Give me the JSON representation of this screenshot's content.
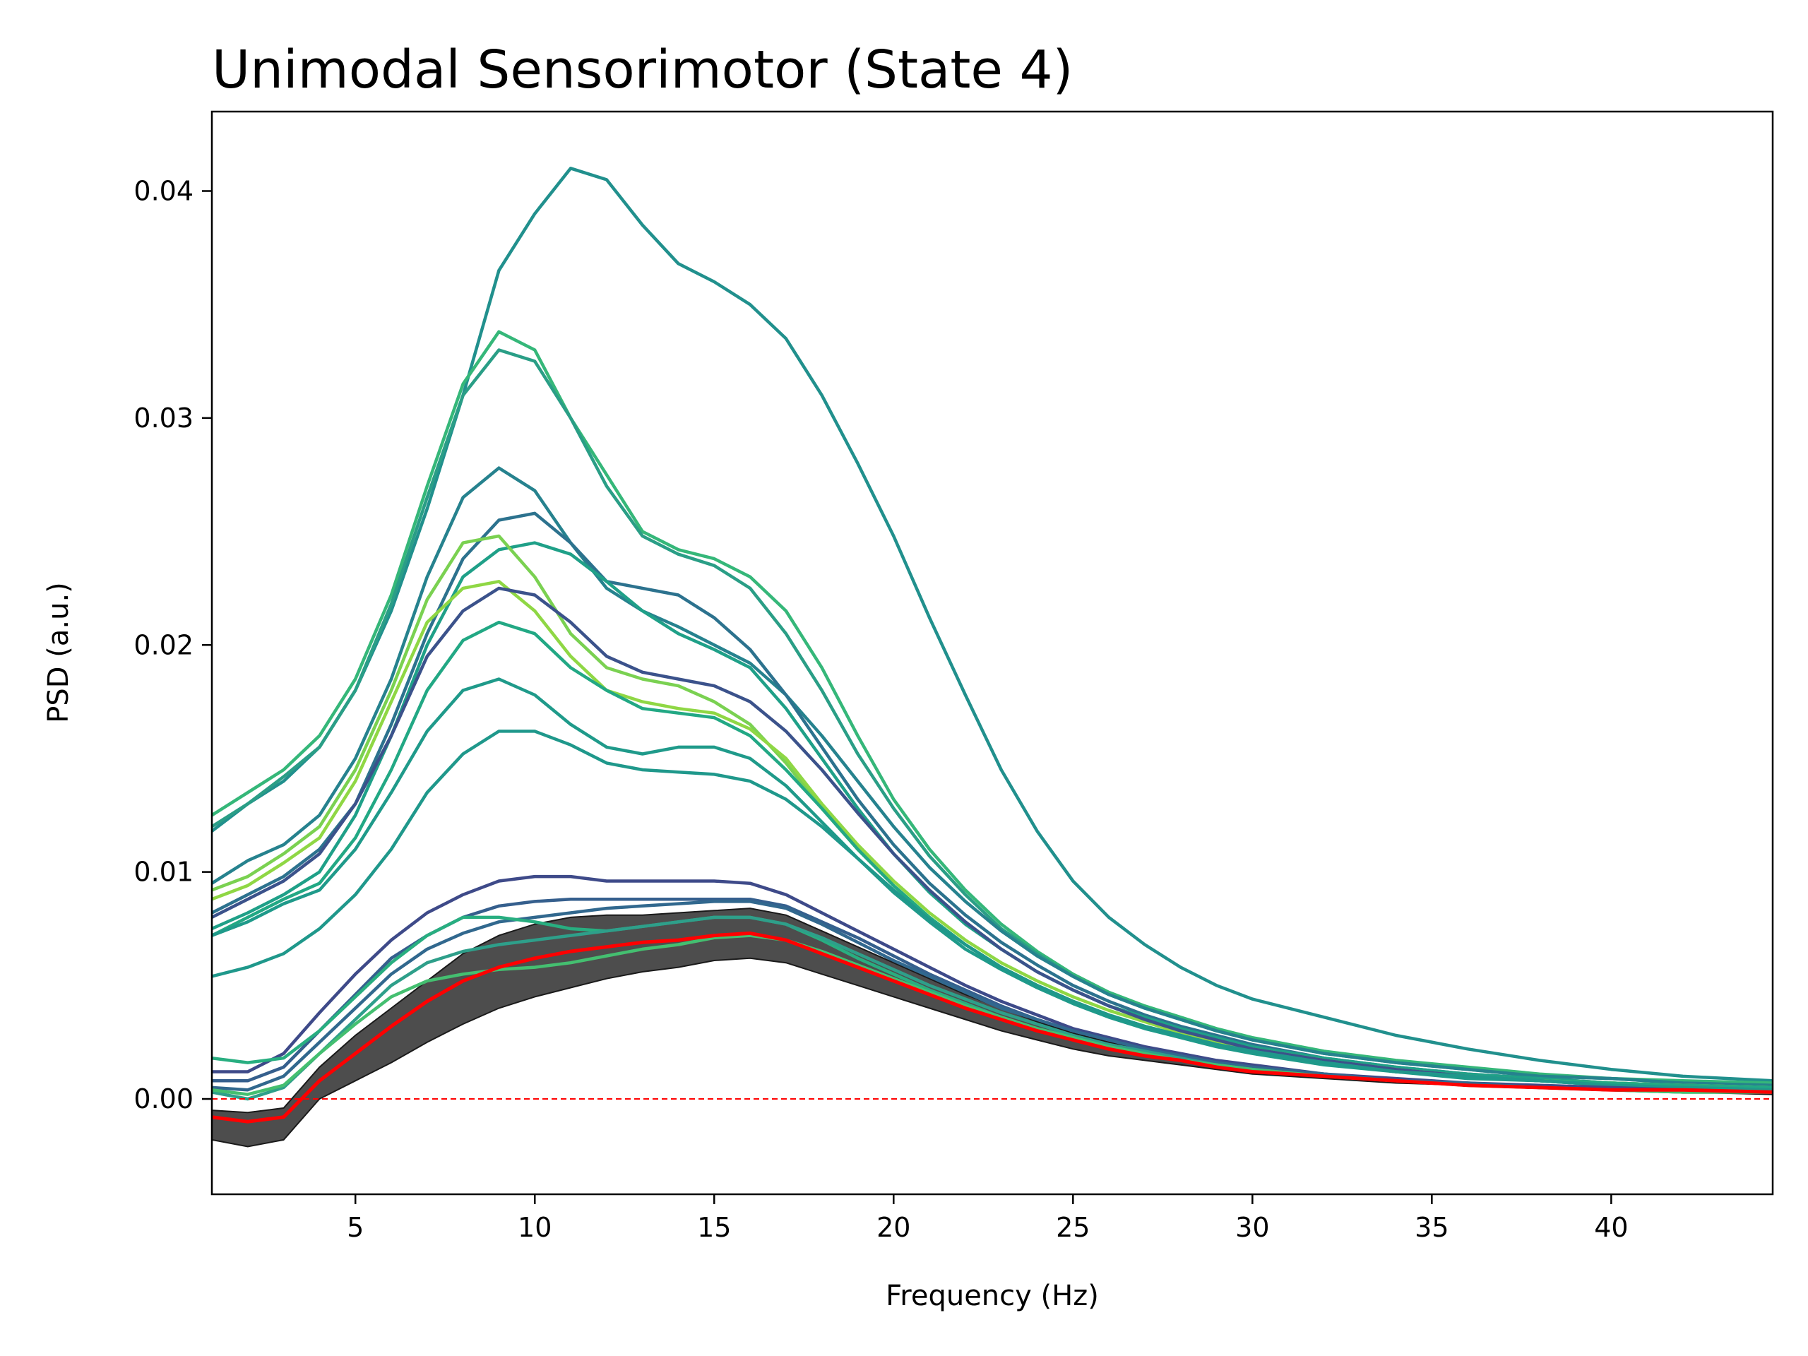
{
  "chart_data": {
    "type": "line",
    "title": "Unimodal Sensorimotor (State 4)",
    "xlabel": "Frequency (Hz)",
    "ylabel": "PSD (a.u.)",
    "xlim": [
      1,
      44.5
    ],
    "ylim": [
      -0.0042,
      0.0435
    ],
    "xticks": [
      5,
      10,
      15,
      20,
      25,
      30,
      35,
      40
    ],
    "xtick_labels": [
      "5",
      "10",
      "15",
      "20",
      "25",
      "30",
      "35",
      "40"
    ],
    "yticks": [
      0,
      0.01,
      0.02,
      0.03,
      0.04
    ],
    "ytick_labels": [
      "0.00",
      "0.01",
      "0.02",
      "0.03",
      "0.04"
    ],
    "grid": false,
    "legend": "none",
    "reference_line": {
      "y": 0,
      "color": "#ff0000",
      "style": "dashed"
    },
    "x": [
      1,
      2,
      3,
      4,
      5,
      6,
      7,
      8,
      9,
      10,
      11,
      12,
      13,
      14,
      15,
      16,
      17,
      18,
      19,
      20,
      21,
      22,
      23,
      24,
      25,
      26,
      27,
      28,
      29,
      30,
      32,
      34,
      36,
      38,
      40,
      42,
      44.5
    ],
    "band": {
      "color": "#3a3a3a",
      "lower": [
        -0.0018,
        -0.0021,
        -0.0018,
        0.0,
        0.0008,
        0.0016,
        0.0025,
        0.0033,
        0.004,
        0.0045,
        0.0049,
        0.0053,
        0.0056,
        0.0058,
        0.0061,
        0.0062,
        0.006,
        0.0055,
        0.005,
        0.0045,
        0.004,
        0.0035,
        0.003,
        0.0026,
        0.0022,
        0.0019,
        0.0017,
        0.0015,
        0.0013,
        0.0011,
        0.0009,
        0.0007,
        0.0006,
        0.0005,
        0.0004,
        0.0003,
        0.0002
      ],
      "upper": [
        -0.0005,
        -0.0006,
        -0.0004,
        0.0014,
        0.0028,
        0.004,
        0.0052,
        0.0064,
        0.0072,
        0.0077,
        0.008,
        0.0081,
        0.0081,
        0.0082,
        0.0083,
        0.0084,
        0.0081,
        0.0074,
        0.0067,
        0.006,
        0.0053,
        0.0046,
        0.004,
        0.0034,
        0.0029,
        0.0025,
        0.0022,
        0.0019,
        0.0016,
        0.0014,
        0.0011,
        0.0009,
        0.0007,
        0.0006,
        0.0005,
        0.0004,
        0.0003
      ]
    },
    "series": [
      {
        "color": "#21908d",
        "values": [
          0.0118,
          0.013,
          0.014,
          0.0155,
          0.018,
          0.0215,
          0.026,
          0.031,
          0.0365,
          0.039,
          0.041,
          0.0405,
          0.0385,
          0.0368,
          0.036,
          0.035,
          0.0335,
          0.031,
          0.028,
          0.0248,
          0.0212,
          0.0178,
          0.0145,
          0.0118,
          0.0096,
          0.008,
          0.0068,
          0.0058,
          0.005,
          0.0044,
          0.0036,
          0.0028,
          0.0022,
          0.0017,
          0.0013,
          0.001,
          0.0008
        ]
      },
      {
        "color": "#35b779",
        "values": [
          0.0125,
          0.0135,
          0.0145,
          0.016,
          0.0185,
          0.0222,
          0.027,
          0.0315,
          0.0338,
          0.033,
          0.03,
          0.0275,
          0.025,
          0.0242,
          0.0238,
          0.023,
          0.0215,
          0.019,
          0.016,
          0.0132,
          0.011,
          0.0092,
          0.0077,
          0.0065,
          0.0055,
          0.0047,
          0.0041,
          0.0036,
          0.0031,
          0.0027,
          0.0021,
          0.0017,
          0.0014,
          0.0011,
          0.0009,
          0.0008,
          0.0007
        ]
      },
      {
        "color": "#2a9e86",
        "values": [
          0.012,
          0.013,
          0.0142,
          0.0155,
          0.018,
          0.0218,
          0.0265,
          0.031,
          0.033,
          0.0325,
          0.03,
          0.027,
          0.0248,
          0.024,
          0.0235,
          0.0225,
          0.0205,
          0.018,
          0.0152,
          0.0128,
          0.0107,
          0.009,
          0.0075,
          0.0064,
          0.0054,
          0.0046,
          0.004,
          0.0035,
          0.003,
          0.0026,
          0.002,
          0.0016,
          0.0013,
          0.001,
          0.0009,
          0.0007,
          0.0006
        ]
      },
      {
        "color": "#26828e",
        "values": [
          0.0095,
          0.0105,
          0.0112,
          0.0125,
          0.015,
          0.0185,
          0.023,
          0.0265,
          0.0278,
          0.0268,
          0.0245,
          0.0225,
          0.0215,
          0.0208,
          0.02,
          0.0192,
          0.0178,
          0.016,
          0.014,
          0.012,
          0.0102,
          0.0087,
          0.0074,
          0.0063,
          0.0054,
          0.0046,
          0.004,
          0.0035,
          0.003,
          0.0026,
          0.002,
          0.0016,
          0.0013,
          0.001,
          0.0009,
          0.0007,
          0.0006
        ]
      },
      {
        "color": "#2c728e",
        "values": [
          0.0082,
          0.009,
          0.0098,
          0.011,
          0.013,
          0.0165,
          0.0205,
          0.0238,
          0.0255,
          0.0258,
          0.0245,
          0.0228,
          0.0225,
          0.0222,
          0.0212,
          0.0198,
          0.0178,
          0.0155,
          0.0132,
          0.0112,
          0.0095,
          0.0081,
          0.0069,
          0.0059,
          0.005,
          0.0043,
          0.0037,
          0.0032,
          0.0028,
          0.0024,
          0.0018,
          0.0014,
          0.0011,
          0.0009,
          0.0007,
          0.0006,
          0.0005
        ]
      },
      {
        "color": "#1fa088",
        "values": [
          0.0075,
          0.0082,
          0.009,
          0.01,
          0.0125,
          0.016,
          0.02,
          0.023,
          0.0242,
          0.0245,
          0.024,
          0.0228,
          0.0215,
          0.0205,
          0.0198,
          0.019,
          0.0172,
          0.015,
          0.0128,
          0.0108,
          0.0091,
          0.0077,
          0.0066,
          0.0056,
          0.0048,
          0.0041,
          0.0036,
          0.0031,
          0.0027,
          0.0023,
          0.0018,
          0.0014,
          0.0011,
          0.0009,
          0.0007,
          0.0006,
          0.0005
        ]
      },
      {
        "color": "#7ad151",
        "values": [
          0.0092,
          0.0098,
          0.0108,
          0.012,
          0.0145,
          0.018,
          0.022,
          0.0245,
          0.0248,
          0.023,
          0.0205,
          0.019,
          0.0185,
          0.0182,
          0.0175,
          0.0165,
          0.0148,
          0.0128,
          0.011,
          0.0094,
          0.008,
          0.0068,
          0.0058,
          0.005,
          0.0043,
          0.0037,
          0.0032,
          0.0028,
          0.0024,
          0.0021,
          0.0016,
          0.0012,
          0.001,
          0.0008,
          0.0007,
          0.0006,
          0.0005
        ]
      },
      {
        "color": "#8fd744",
        "values": [
          0.0088,
          0.0094,
          0.0104,
          0.0115,
          0.014,
          0.0175,
          0.021,
          0.0225,
          0.0228,
          0.0215,
          0.0195,
          0.018,
          0.0175,
          0.0172,
          0.017,
          0.0163,
          0.015,
          0.013,
          0.0112,
          0.0096,
          0.0082,
          0.007,
          0.006,
          0.0052,
          0.0045,
          0.0039,
          0.0034,
          0.0029,
          0.0025,
          0.0022,
          0.0017,
          0.0013,
          0.001,
          0.0008,
          0.0007,
          0.0006,
          0.0005
        ]
      },
      {
        "color": "#3b528b",
        "values": [
          0.008,
          0.0088,
          0.0096,
          0.0108,
          0.013,
          0.016,
          0.0195,
          0.0215,
          0.0225,
          0.0222,
          0.021,
          0.0195,
          0.0188,
          0.0185,
          0.0182,
          0.0175,
          0.0162,
          0.0145,
          0.0126,
          0.0108,
          0.0092,
          0.0078,
          0.0066,
          0.0056,
          0.0048,
          0.0041,
          0.0035,
          0.003,
          0.0026,
          0.0022,
          0.0017,
          0.0013,
          0.001,
          0.0008,
          0.0006,
          0.0005,
          0.0004
        ]
      },
      {
        "color": "#22a884",
        "values": [
          0.0072,
          0.008,
          0.0088,
          0.0095,
          0.0115,
          0.0145,
          0.018,
          0.0202,
          0.021,
          0.0205,
          0.019,
          0.018,
          0.0172,
          0.017,
          0.0168,
          0.016,
          0.0145,
          0.0128,
          0.011,
          0.0094,
          0.008,
          0.0068,
          0.0058,
          0.005,
          0.0043,
          0.0037,
          0.0032,
          0.0028,
          0.0024,
          0.0021,
          0.0016,
          0.0012,
          0.001,
          0.0008,
          0.0007,
          0.0006,
          0.0005
        ]
      },
      {
        "color": "#1f9a8a",
        "values": [
          0.0072,
          0.0078,
          0.0086,
          0.0092,
          0.011,
          0.0135,
          0.0162,
          0.018,
          0.0185,
          0.0178,
          0.0165,
          0.0155,
          0.0152,
          0.0155,
          0.0155,
          0.015,
          0.0138,
          0.0122,
          0.0106,
          0.0091,
          0.0078,
          0.0066,
          0.0057,
          0.0049,
          0.0042,
          0.0036,
          0.0031,
          0.0027,
          0.0023,
          0.002,
          0.0015,
          0.0012,
          0.0009,
          0.0008,
          0.0006,
          0.0005,
          0.0004
        ]
      },
      {
        "color": "#1f988b",
        "values": [
          0.0054,
          0.0058,
          0.0064,
          0.0075,
          0.009,
          0.011,
          0.0135,
          0.0152,
          0.0162,
          0.0162,
          0.0156,
          0.0148,
          0.0145,
          0.0144,
          0.0143,
          0.014,
          0.0132,
          0.012,
          0.0106,
          0.0092,
          0.0079,
          0.0068,
          0.0058,
          0.005,
          0.0043,
          0.0037,
          0.0032,
          0.0028,
          0.0024,
          0.0021,
          0.0016,
          0.0012,
          0.001,
          0.0008,
          0.0006,
          0.0005,
          0.0004
        ]
      },
      {
        "color": "#3e4a89",
        "values": [
          0.0012,
          0.0012,
          0.002,
          0.0038,
          0.0055,
          0.007,
          0.0082,
          0.009,
          0.0096,
          0.0098,
          0.0098,
          0.0096,
          0.0096,
          0.0096,
          0.0096,
          0.0095,
          0.009,
          0.0082,
          0.0074,
          0.0066,
          0.0058,
          0.005,
          0.0043,
          0.0037,
          0.0031,
          0.0027,
          0.0023,
          0.002,
          0.0017,
          0.0015,
          0.0011,
          0.0009,
          0.0007,
          0.0006,
          0.0005,
          0.0004,
          0.0003
        ]
      },
      {
        "color": "#355f8d",
        "values": [
          0.0008,
          0.0008,
          0.0014,
          0.003,
          0.0046,
          0.0062,
          0.0072,
          0.008,
          0.0085,
          0.0087,
          0.0088,
          0.0088,
          0.0088,
          0.0088,
          0.0088,
          0.0088,
          0.0085,
          0.0078,
          0.0071,
          0.0063,
          0.0055,
          0.0048,
          0.0041,
          0.0035,
          0.003,
          0.0026,
          0.0022,
          0.0019,
          0.0016,
          0.0014,
          0.0011,
          0.0008,
          0.0007,
          0.0005,
          0.0004,
          0.0004,
          0.0003
        ]
      },
      {
        "color": "#31688e",
        "values": [
          0.0005,
          0.0004,
          0.001,
          0.0025,
          0.004,
          0.0055,
          0.0066,
          0.0073,
          0.0078,
          0.008,
          0.0082,
          0.0084,
          0.0085,
          0.0086,
          0.0087,
          0.0087,
          0.0084,
          0.0077,
          0.0069,
          0.0061,
          0.0054,
          0.0047,
          0.004,
          0.0035,
          0.003,
          0.0026,
          0.0022,
          0.0019,
          0.0016,
          0.0014,
          0.0011,
          0.0008,
          0.0007,
          0.0005,
          0.0004,
          0.0004,
          0.0003
        ]
      },
      {
        "color": "#28ae80",
        "values": [
          0.0018,
          0.0016,
          0.0018,
          0.003,
          0.0045,
          0.006,
          0.0072,
          0.008,
          0.008,
          0.0078,
          0.0075,
          0.0074,
          0.0076,
          0.0078,
          0.008,
          0.008,
          0.0077,
          0.007,
          0.0062,
          0.0055,
          0.0048,
          0.0042,
          0.0036,
          0.0031,
          0.0027,
          0.0023,
          0.002,
          0.0017,
          0.0015,
          0.0013,
          0.001,
          0.0008,
          0.0006,
          0.0005,
          0.0004,
          0.0003,
          0.0003
        ]
      },
      {
        "color": "#2e9f8a",
        "values": [
          0.0003,
          0.0,
          0.0005,
          0.002,
          0.0035,
          0.005,
          0.006,
          0.0065,
          0.0068,
          0.007,
          0.0072,
          0.0074,
          0.0076,
          0.0078,
          0.008,
          0.008,
          0.0077,
          0.0071,
          0.0064,
          0.0057,
          0.005,
          0.0044,
          0.0038,
          0.0033,
          0.0028,
          0.0024,
          0.0021,
          0.0018,
          0.0015,
          0.0013,
          0.001,
          0.0008,
          0.0006,
          0.0005,
          0.0004,
          0.0003,
          0.0003
        ]
      },
      {
        "color": "#44bf70",
        "values": [
          0.0004,
          0.0002,
          0.0006,
          0.002,
          0.0033,
          0.0045,
          0.0052,
          0.0055,
          0.0057,
          0.0058,
          0.006,
          0.0063,
          0.0066,
          0.0068,
          0.0071,
          0.0072,
          0.007,
          0.0065,
          0.0059,
          0.0053,
          0.0047,
          0.0041,
          0.0036,
          0.0031,
          0.0027,
          0.0023,
          0.002,
          0.0017,
          0.0015,
          0.0013,
          0.001,
          0.0008,
          0.0006,
          0.0005,
          0.0004,
          0.0003,
          0.0003
        ]
      },
      {
        "color": "#ff0000",
        "values": [
          -0.0008,
          -0.001,
          -0.0008,
          0.0008,
          0.002,
          0.0032,
          0.0043,
          0.0052,
          0.0058,
          0.0062,
          0.0065,
          0.0067,
          0.0069,
          0.007,
          0.0072,
          0.0073,
          0.007,
          0.0064,
          0.0058,
          0.0052,
          0.0046,
          0.004,
          0.0035,
          0.003,
          0.0026,
          0.0022,
          0.0019,
          0.0017,
          0.0014,
          0.0012,
          0.001,
          0.0008,
          0.0006,
          0.0005,
          0.0004,
          0.0004,
          0.0003
        ]
      }
    ]
  }
}
